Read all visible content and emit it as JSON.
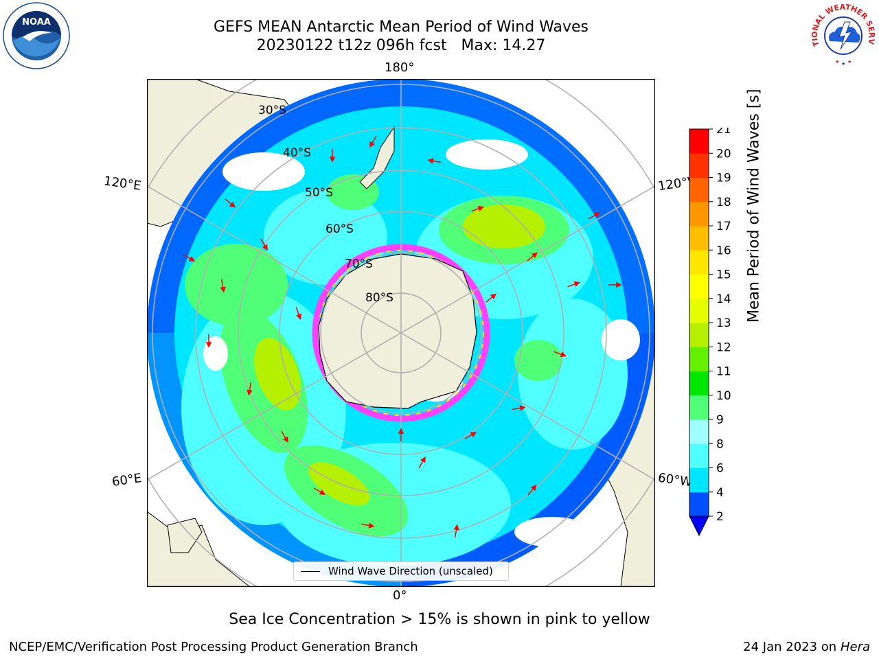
{
  "title": {
    "line1": "GEFS MEAN Antarctic Mean Period of Wind Waves",
    "line2": "20230122 t12z 096h fcst   Max: 14.27"
  },
  "logos": {
    "noaa": "NOAA",
    "nws": "NATIONAL WEATHER SERVICE"
  },
  "map": {
    "longitude_labels": {
      "top": "180°",
      "left_upper": "120°E",
      "right_upper": "120°W",
      "left_lower": "60°E",
      "right_lower": "60°W",
      "bottom": "0°"
    },
    "latitude_labels": [
      "30°S",
      "40°S",
      "50°S",
      "60°S",
      "70°S",
      "80°S"
    ],
    "legend_label": "Wind Wave Direction (unscaled)"
  },
  "colorbar": {
    "label": "Mean Period of Wind Waves [s]",
    "ticks": [
      "2",
      "4",
      "6",
      "8",
      "9",
      "10",
      "11",
      "12",
      "13",
      "14",
      "15",
      "16",
      "17",
      "18",
      "19",
      "20",
      "21"
    ],
    "colors": [
      "#0050ff",
      "#00e6ff",
      "#50ffff",
      "#a0ffff",
      "#50ff78",
      "#00e600",
      "#64f000",
      "#b4f000",
      "#e6ff00",
      "#ffff00",
      "#ffe600",
      "#ffbe00",
      "#ff9600",
      "#ff6400",
      "#ff3200",
      "#ff0000"
    ],
    "extend_color": "#0000ff"
  },
  "note": "Sea Ice Concentration > 15% is shown in pink to yellow",
  "footer": {
    "left": "NCEP/EMC/Verification Post Processing Product Generation Branch",
    "right_prefix": "24 Jan 2023 on ",
    "right_machine": "Hera"
  }
}
